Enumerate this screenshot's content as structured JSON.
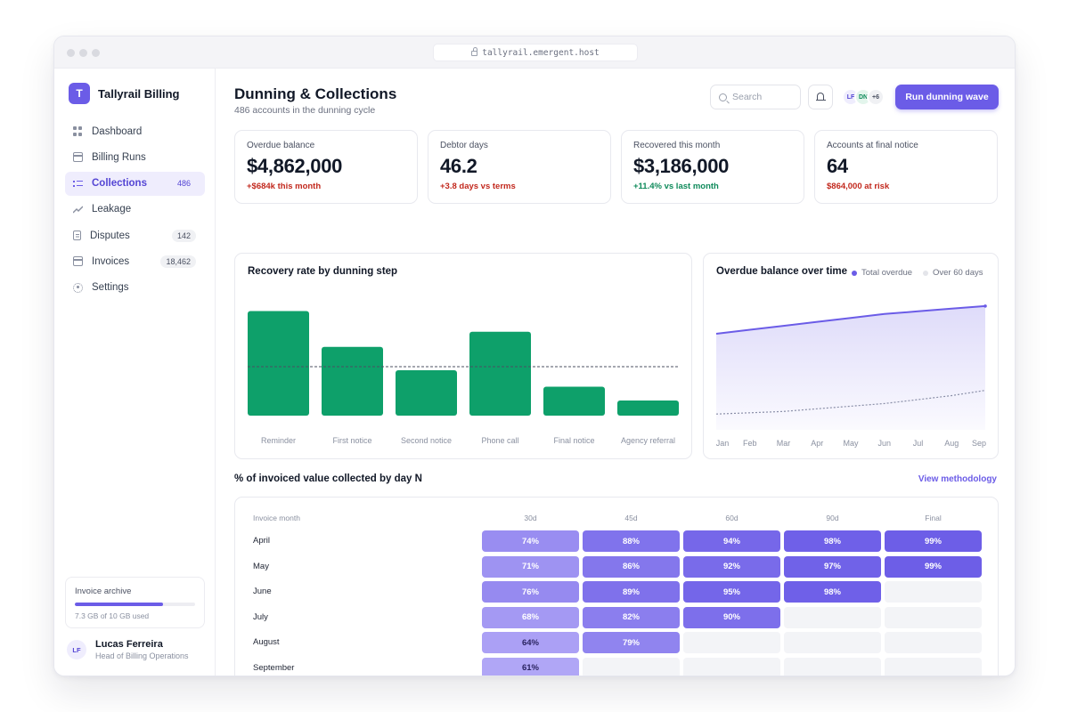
{
  "browser": {
    "url": "tallyrail.emergent.host"
  },
  "sidebar": {
    "brand": {
      "logo_letter": "T",
      "name": "Tallyrail Billing"
    },
    "items": [
      {
        "label": "Dashboard",
        "icon": "grid-icon",
        "badge": "",
        "active": false
      },
      {
        "label": "Billing Runs",
        "icon": "calendar-icon",
        "badge": "",
        "active": false
      },
      {
        "label": "Collections",
        "icon": "list-icon",
        "badge": "486",
        "active": true
      },
      {
        "label": "Leakage",
        "icon": "trend-icon",
        "badge": "",
        "active": false
      },
      {
        "label": "Disputes",
        "icon": "document-icon",
        "badge": "142",
        "active": false
      },
      {
        "label": "Invoices",
        "icon": "cart-icon",
        "badge": "18,462",
        "active": false
      },
      {
        "label": "Settings",
        "icon": "gear-icon",
        "badge": "",
        "active": false
      }
    ],
    "archive": {
      "title": "Invoice archive",
      "usage_fraction": 0.73,
      "usage_text": "7.3 GB of 10 GB used"
    },
    "user": {
      "initials": "LF",
      "name": "Lucas Ferreira",
      "role": "Head of Billing Operations"
    }
  },
  "header": {
    "title": "Dunning & Collections",
    "subtitle": "486 accounts in the dunning cycle",
    "search_placeholder": "Search",
    "avatars": [
      "LF",
      "DN"
    ],
    "avatars_more": "+6",
    "primary_button": "Run dunning wave"
  },
  "kpis": [
    {
      "label": "Overdue balance",
      "value": "$4,862,000",
      "delta": "+$684k this month",
      "tone": "neg"
    },
    {
      "label": "Debtor days",
      "value": "46.2",
      "delta": "+3.8 days vs terms",
      "tone": "neg"
    },
    {
      "label": "Recovered this month",
      "value": "$3,186,000",
      "delta": "+11.4% vs last month",
      "tone": "pos"
    },
    {
      "label": "Accounts at final notice",
      "value": "64",
      "delta": "$864,000 at risk",
      "tone": "neg"
    }
  ],
  "chart_data": [
    {
      "type": "bar",
      "title": "Recovery rate by dunning step",
      "categories": [
        "Reminder",
        "First notice",
        "Second notice",
        "Phone call",
        "Final notice",
        "Agency referral"
      ],
      "values": [
        38,
        25,
        16.5,
        30.5,
        10.5,
        5.5
      ],
      "ylim": [
        0,
        44
      ],
      "average_line": 17.8,
      "color": "#0ea06a"
    },
    {
      "type": "area",
      "title": "Overdue balance over time",
      "x": [
        "Jan",
        "Feb",
        "Mar",
        "Apr",
        "May",
        "Jun",
        "Jul",
        "Aug",
        "Sep"
      ],
      "ylim": [
        0,
        100
      ],
      "series": [
        {
          "name": "Total overdue",
          "values": [
            73,
            76,
            79,
            82,
            85,
            88,
            90,
            92,
            94
          ],
          "color": "#6b5ce7"
        },
        {
          "name": "Over 60 days",
          "values": [
            12,
            13,
            14,
            16,
            18,
            20,
            23,
            26,
            30
          ],
          "color": "#8a8fa8"
        }
      ],
      "legend": "top-right"
    }
  ],
  "cohort": {
    "title": "% of invoiced value collected by day N",
    "link": "View methodology",
    "row_header": "Invoice month",
    "columns": [
      "30d",
      "45d",
      "60d",
      "90d",
      "Final"
    ],
    "rows": [
      {
        "month": "April",
        "values": [
          "74%",
          "88%",
          "94%",
          "98%",
          "99%"
        ]
      },
      {
        "month": "May",
        "values": [
          "71%",
          "86%",
          "92%",
          "97%",
          "99%"
        ]
      },
      {
        "month": "June",
        "values": [
          "76%",
          "89%",
          "95%",
          "98%",
          ""
        ]
      },
      {
        "month": "July",
        "values": [
          "68%",
          "82%",
          "90%",
          "",
          ""
        ]
      },
      {
        "month": "August",
        "values": [
          "64%",
          "79%",
          "",
          "",
          ""
        ]
      },
      {
        "month": "September",
        "values": [
          "61%",
          "",
          "",
          "",
          ""
        ]
      }
    ]
  }
}
